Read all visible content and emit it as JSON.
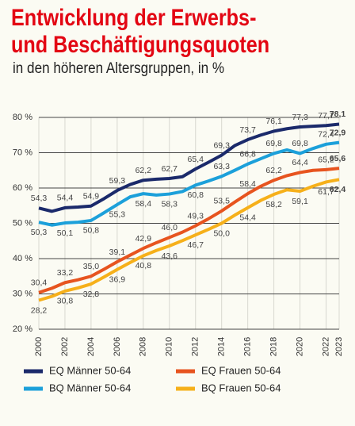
{
  "chart_data": {
    "type": "line",
    "title": "Entwicklung der Erwerbs- und Beschäftigungsquoten",
    "subtitle": "in den höheren Altersgruppen, in %",
    "x": [
      2000,
      2001,
      2002,
      2003,
      2004,
      2005,
      2006,
      2007,
      2008,
      2009,
      2010,
      2011,
      2012,
      2013,
      2014,
      2015,
      2016,
      2017,
      2018,
      2019,
      2020,
      2021,
      2022,
      2023
    ],
    "xlim": [
      2000,
      2023
    ],
    "xticks": [
      2000,
      2002,
      2004,
      2006,
      2008,
      2010,
      2012,
      2014,
      2016,
      2018,
      2020,
      2022,
      2023
    ],
    "ylim": [
      20,
      80
    ],
    "yticks": [
      {
        "value": 20,
        "label": "20 %"
      },
      {
        "value": 30,
        "label": "30 %"
      },
      {
        "value": 40,
        "label": "40 %"
      },
      {
        "value": 50,
        "label": "50 %"
      },
      {
        "value": 60,
        "label": "60 %"
      },
      {
        "value": 70,
        "label": "70 %"
      },
      {
        "value": 80,
        "label": "80 %"
      }
    ],
    "grid": true,
    "legend": "bottom",
    "series": [
      {
        "name": "EQ Männer 50-64",
        "color": "#1b2a6b",
        "values": [
          54.3,
          53.4,
          54.4,
          54.6,
          54.9,
          57.0,
          59.3,
          61.0,
          62.2,
          62.5,
          62.7,
          63.2,
          65.4,
          67.3,
          69.3,
          72.0,
          73.7,
          75.0,
          76.1,
          76.8,
          77.3,
          77.5,
          77.7,
          78.1
        ],
        "value_labels": [
          "54,3",
          null,
          "54,4",
          null,
          "54,9",
          null,
          "59,3",
          null,
          "62,2",
          null,
          "62,7",
          null,
          "65,4",
          null,
          "69,3",
          null,
          "73,7",
          null,
          "76,1",
          null,
          "77,3",
          null,
          "77,7",
          "78,1"
        ]
      },
      {
        "name": "BQ Männer 50-64",
        "color": "#1ca0da",
        "values": [
          50.3,
          49.5,
          50.1,
          50.3,
          50.8,
          53.0,
          55.3,
          57.5,
          58.4,
          58.0,
          58.3,
          59.0,
          60.8,
          62.0,
          63.3,
          65.0,
          66.8,
          68.3,
          69.8,
          70.8,
          69.8,
          71.2,
          72.4,
          72.9
        ],
        "value_labels": [
          "50,3",
          null,
          "50,1",
          null,
          "50,8",
          null,
          "55,3",
          null,
          "58,4",
          null,
          "58,3",
          null,
          "60,8",
          null,
          "63,3",
          null,
          "66,8",
          null,
          "69,8",
          null,
          "69,8",
          null,
          "72,4",
          "72,9"
        ]
      },
      {
        "name": "EQ Frauen 50-64",
        "color": "#e7541f",
        "values": [
          30.4,
          31.6,
          33.2,
          34.0,
          35.0,
          37.0,
          39.1,
          41.0,
          42.9,
          44.5,
          46.0,
          47.5,
          49.3,
          51.3,
          53.5,
          56.0,
          58.4,
          60.5,
          62.2,
          63.5,
          64.4,
          65.0,
          65.2,
          65.6
        ],
        "value_labels": [
          "30,4",
          null,
          "33,2",
          null,
          "35,0",
          null,
          "39,1",
          null,
          "42,9",
          null,
          "46,0",
          null,
          "49,3",
          null,
          "53,5",
          null,
          "58,4",
          null,
          "62,2",
          null,
          "64,4",
          null,
          "65,2",
          "65,6"
        ]
      },
      {
        "name": "BQ Frauen 50-64",
        "color": "#f6b01a",
        "values": [
          28.2,
          29.3,
          30.8,
          31.7,
          32.8,
          34.8,
          36.9,
          38.9,
          40.8,
          42.3,
          43.6,
          45.1,
          46.7,
          48.3,
          50.0,
          52.3,
          54.4,
          56.5,
          58.2,
          59.5,
          59.1,
          60.5,
          61.7,
          62.4
        ],
        "value_labels": [
          "28,2",
          null,
          "30,8",
          null,
          "32,8",
          null,
          "36,9",
          null,
          "40,8",
          null,
          "43,6",
          null,
          "46,7",
          null,
          "50,0",
          null,
          "54,4",
          null,
          "58,2",
          null,
          "59,1",
          null,
          "61,7",
          "62,4"
        ]
      }
    ]
  }
}
